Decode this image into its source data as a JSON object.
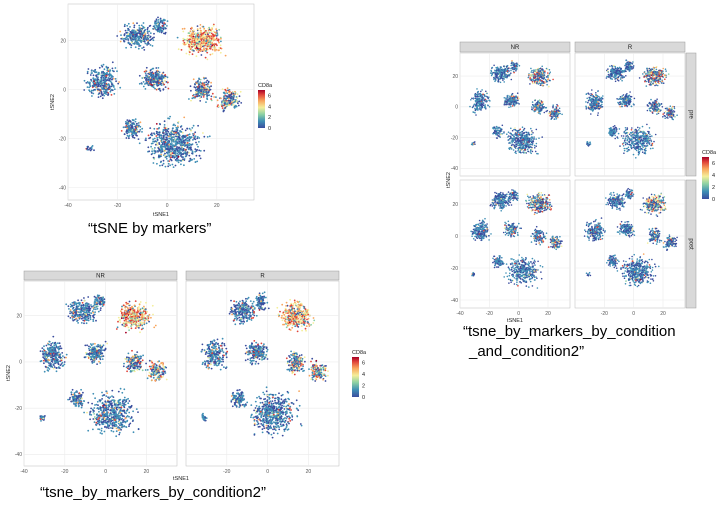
{
  "chart_data": [
    {
      "type": "scatter",
      "panels": [
        {
          "strip_top": ""
        }
      ],
      "xlabel": "tSNE1",
      "ylabel": "tSNE2",
      "xlim": [
        -40,
        35
      ],
      "ylim": [
        -45,
        35
      ],
      "x_ticks": [
        -40,
        -20,
        0,
        20
      ],
      "y_ticks": [
        -40,
        -20,
        0,
        20
      ],
      "legend": {
        "title": "CD8a",
        "ticks": [
          0,
          2,
          4,
          6
        ],
        "position": "right"
      },
      "grid": true,
      "caption": "“tSNE by markers”"
    },
    {
      "type": "scatter",
      "panels": [
        {
          "strip_top": "NR"
        },
        {
          "strip_top": "R"
        }
      ],
      "xlabel": "tSNE1",
      "ylabel": "tSNE2",
      "xlim": [
        -40,
        35
      ],
      "ylim": [
        -45,
        35
      ],
      "x_ticks_by_panel": [
        [
          -40,
          -20,
          0,
          20
        ],
        [
          -20,
          0,
          20
        ]
      ],
      "y_ticks": [
        -40,
        -20,
        0,
        20
      ],
      "legend": {
        "title": "CD8a",
        "ticks": [
          0,
          2,
          4,
          6
        ],
        "position": "right"
      },
      "grid": true,
      "caption": "“tsne_by_markers_by_condition2”"
    },
    {
      "type": "scatter",
      "col_strips": [
        "NR",
        "R"
      ],
      "row_strips": [
        "pre",
        "post"
      ],
      "xlabel": "tSNE1",
      "ylabel": "tSNE2",
      "xlim": [
        -40,
        35
      ],
      "ylim": [
        -45,
        35
      ],
      "x_ticks_by_panel": [
        [
          -40,
          -20,
          0,
          20
        ],
        [
          -20,
          0,
          20
        ]
      ],
      "y_ticks": [
        -40,
        -20,
        0,
        20
      ],
      "legend": {
        "title": "CD8a",
        "ticks": [
          0,
          2,
          4,
          6
        ],
        "position": "right"
      },
      "grid": true,
      "caption": "“tsne_by_markers_by_condition _and_condition2”"
    }
  ],
  "colors": {
    "scale": [
      "#3a4d9e",
      "#3f8fb5",
      "#8cd1a4",
      "#f4ee9a",
      "#f8a55c",
      "#e0443a",
      "#a50026"
    ],
    "panel_bg": "#ffffff",
    "grid": "#ebebeb",
    "strip_bg": "#d9d9d9"
  }
}
